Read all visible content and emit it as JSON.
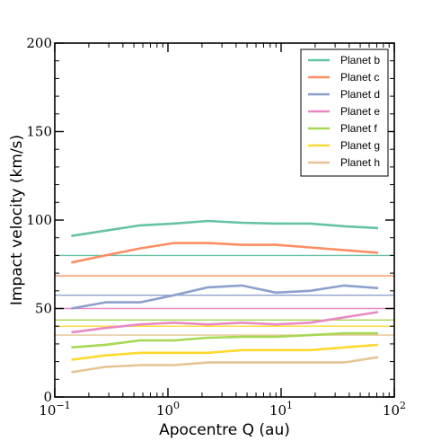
{
  "chart_data": {
    "type": "line",
    "xlabel": "Apocentre Q (au)",
    "ylabel": "Impact velocity (km/s)",
    "xscale": "log",
    "xlim": [
      0.1,
      100
    ],
    "ylim": [
      0,
      200
    ],
    "x_ticks": [
      {
        "value": 0.1,
        "base": "10",
        "exp": "−1"
      },
      {
        "value": 1,
        "base": "10",
        "exp": "0"
      },
      {
        "value": 10,
        "base": "10",
        "exp": "1"
      },
      {
        "value": 100,
        "base": "10",
        "exp": "2"
      }
    ],
    "y_ticks": [
      0,
      50,
      100,
      150,
      200
    ],
    "grid": false,
    "legend_position": "top-right",
    "x": [
      0.14,
      0.28,
      0.57,
      1.13,
      2.26,
      4.5,
      9.0,
      18.0,
      36.0,
      72.0
    ],
    "series": [
      {
        "name": "Planet b",
        "color": "#66c2a5",
        "values": [
          91,
          94,
          97,
          98,
          99.5,
          98.5,
          98,
          98,
          96.5,
          95.5
        ],
        "hline": 80
      },
      {
        "name": "Planet c",
        "color": "#fc8d62",
        "values": [
          76,
          80,
          84,
          87,
          87,
          86,
          86,
          84.5,
          83,
          81.5
        ],
        "hline": 68.5
      },
      {
        "name": "Planet d",
        "color": "#8da0cb",
        "values": [
          50,
          53.5,
          53.5,
          57.5,
          62,
          63,
          59,
          60,
          63,
          61.5
        ],
        "hline": 57.5
      },
      {
        "name": "Planet e",
        "color": "#e78ac3",
        "values": [
          36.5,
          39,
          41,
          42,
          41,
          42,
          41,
          42,
          45,
          48
        ],
        "hline": 50
      },
      {
        "name": "Planet f",
        "color": "#a6d854",
        "values": [
          28,
          29.5,
          32,
          32,
          33.5,
          34,
          34,
          35,
          36,
          36
        ],
        "hline": 43.5
      },
      {
        "name": "Planet g",
        "color": "#ffd92f",
        "values": [
          21,
          23.5,
          25,
          25,
          25,
          26.5,
          26.5,
          26.5,
          28,
          29.5
        ],
        "hline": 40
      },
      {
        "name": "Planet h",
        "color": "#e5c494",
        "values": [
          14,
          17,
          18,
          18,
          19.5,
          19.5,
          19.5,
          19.5,
          19.5,
          22.5
        ],
        "hline": 35
      }
    ]
  }
}
